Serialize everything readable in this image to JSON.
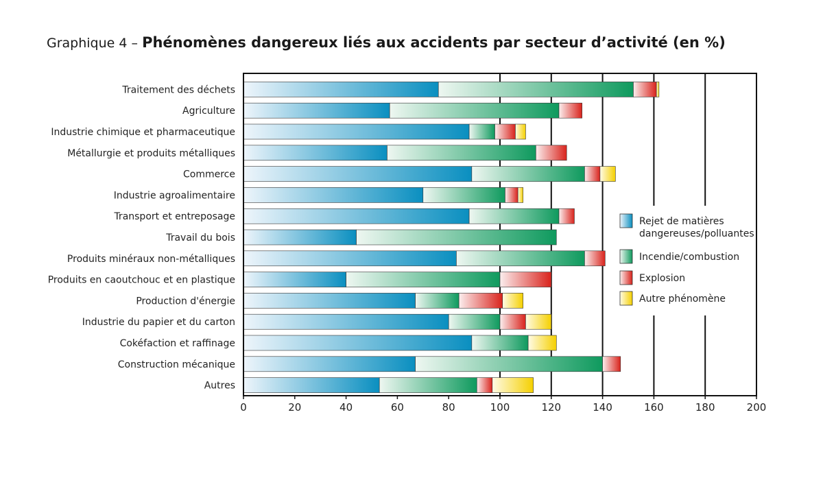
{
  "chart_data": {
    "type": "bar",
    "orientation": "horizontal",
    "stacked": true,
    "title_prefix": "Graphique 4 – ",
    "title": "Phénomènes dangereux liés aux accidents par secteur d’activité (en %)",
    "xlabel": "",
    "ylabel": "",
    "xlim": [
      0,
      200
    ],
    "xticks": [
      0,
      20,
      40,
      60,
      80,
      100,
      120,
      140,
      160,
      180,
      200
    ],
    "grid": "vertical lines at 100, 120, 140, 160, 180",
    "legend_position": "right",
    "categories": [
      "Traitement des déchets",
      "Agriculture",
      "Industrie chimique et pharmaceutique",
      "Métallurgie et produits métalliques",
      "Commerce",
      "Industrie agroalimentaire",
      "Transport et entreposage",
      "Travail du bois",
      "Produits minéraux non-métalliques",
      "Produits en caoutchouc et en plastique",
      "Production d'énergie",
      "Industrie du papier et du carton",
      "Cokéfaction et raffinage",
      "Construction mécanique",
      "Autres"
    ],
    "series": [
      {
        "name": "Rejet de matières dangereuses/polluantes",
        "color": "#0a8fc0",
        "values": [
          76,
          57,
          88,
          56,
          89,
          70,
          88,
          44,
          83,
          40,
          67,
          80,
          89,
          67,
          53
        ]
      },
      {
        "name": "Incendie/combustion",
        "color": "#0f9a5e",
        "values": [
          76,
          66,
          10,
          58,
          44,
          32,
          35,
          78,
          50,
          60,
          17,
          20,
          22,
          73,
          38
        ]
      },
      {
        "name": "Explosion",
        "color": "#d9231c",
        "values": [
          9,
          9,
          8,
          12,
          6,
          5,
          6,
          0,
          8,
          20,
          17,
          10,
          0,
          7,
          6
        ]
      },
      {
        "name": "Autre phénomène",
        "color": "#f5d000",
        "values": [
          1,
          0,
          4,
          0,
          6,
          2,
          0,
          0,
          0,
          0,
          8,
          10,
          11,
          0,
          16
        ]
      }
    ]
  }
}
